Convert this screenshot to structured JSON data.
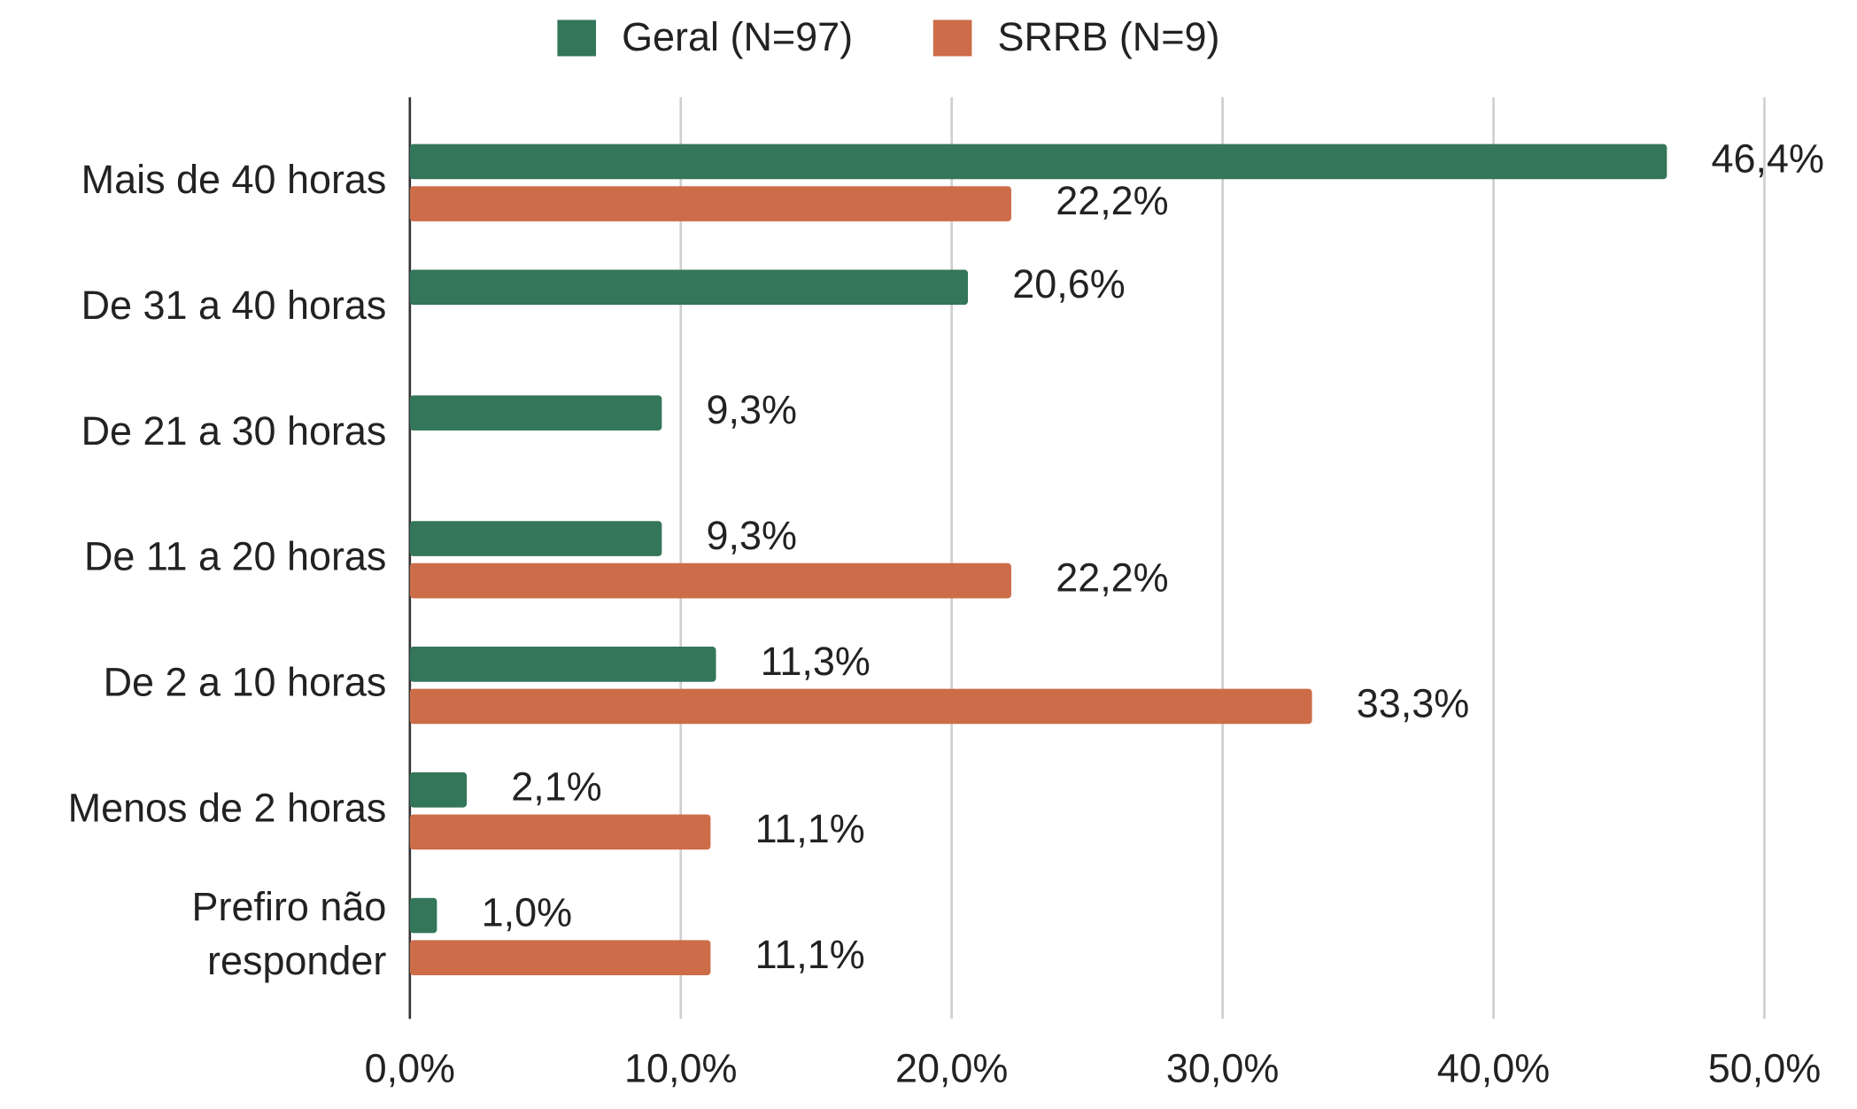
{
  "chart_data": {
    "type": "hbar",
    "categories": [
      "Mais de 40 horas",
      "De 31 a 40 horas",
      "De 21 a 30 horas",
      "De 11 a 20 horas",
      "De 2 a 10 horas",
      "Menos de 2 horas",
      "Prefiro não\nresponder"
    ],
    "series": [
      {
        "name": "Geral (N=97)",
        "color": "#34765a",
        "values": [
          46.4,
          20.6,
          9.3,
          9.3,
          11.3,
          2.1,
          1.0
        ],
        "value_labels": [
          "46,4%",
          "20,6%",
          "9,3%",
          "9,3%",
          "11,3%",
          "2,1%",
          "1,0%"
        ]
      },
      {
        "name": "SRRB (N=9)",
        "color": "#cc6c48",
        "values": [
          22.2,
          null,
          null,
          22.2,
          33.3,
          11.1,
          11.1
        ],
        "value_labels": [
          "22,2%",
          null,
          null,
          "22,2%",
          "33,3%",
          "11,1%",
          "11,1%"
        ]
      }
    ],
    "xlim": [
      0,
      50
    ],
    "xticks": [
      {
        "value": 0,
        "label": "0,0%"
      },
      {
        "value": 10,
        "label": "10,0%"
      },
      {
        "value": 20,
        "label": "20,0%"
      },
      {
        "value": 30,
        "label": "30,0%"
      },
      {
        "value": 40,
        "label": "40,0%"
      },
      {
        "value": 50,
        "label": "50,0%"
      }
    ],
    "grid": true,
    "legend": "top"
  }
}
